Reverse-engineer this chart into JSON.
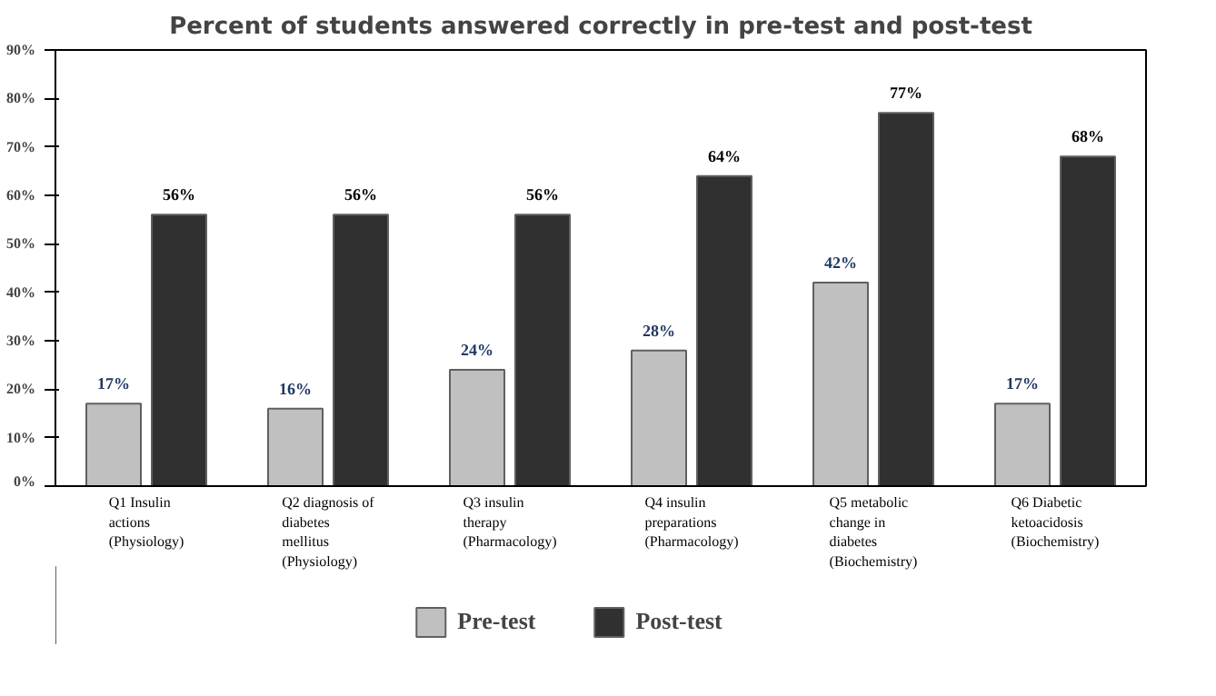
{
  "chart_data": {
    "type": "bar",
    "title": "Percent of students answered correctly in pre-test and post-test",
    "categories": [
      "Q1 Insulin\nactions\n(Physiology)",
      "Q2 diagnosis of\ndiabetes\nmellitus\n(Physiology)",
      "Q3 insulin\ntherapy\n(Pharmacology)",
      "Q4 insulin\npreparations\n(Pharmacology)",
      "Q5 metabolic\nchange in\ndiabetes\n(Biochemistry)",
      "Q6 Diabetic\nketoacidosis\n(Biochemistry)"
    ],
    "series": [
      {
        "name": "Pre-test",
        "color": "#c0c0c0",
        "values": [
          17,
          16,
          24,
          28,
          42,
          17
        ],
        "value_labels": [
          "17%",
          "16%",
          "24%",
          "28%",
          "42%",
          "17%"
        ]
      },
      {
        "name": "Post-test",
        "color": "#303030",
        "values": [
          56,
          56,
          56,
          64,
          77,
          68
        ],
        "value_labels": [
          "56%",
          "56%",
          "56%",
          "64%",
          "77%",
          "68%"
        ]
      }
    ],
    "ylim": [
      0,
      90
    ],
    "yticks": [
      {
        "value": 0,
        "label": "0%"
      },
      {
        "value": 10,
        "label": "10%"
      },
      {
        "value": 20,
        "label": "20%"
      },
      {
        "value": 30,
        "label": "30%"
      },
      {
        "value": 40,
        "label": "40%"
      },
      {
        "value": 50,
        "label": "50%"
      },
      {
        "value": 60,
        "label": "60%"
      },
      {
        "value": 70,
        "label": "70%"
      },
      {
        "value": 80,
        "label": "80%"
      },
      {
        "value": 90,
        "label": "90%"
      }
    ],
    "grid": false,
    "legend": "bottom"
  }
}
